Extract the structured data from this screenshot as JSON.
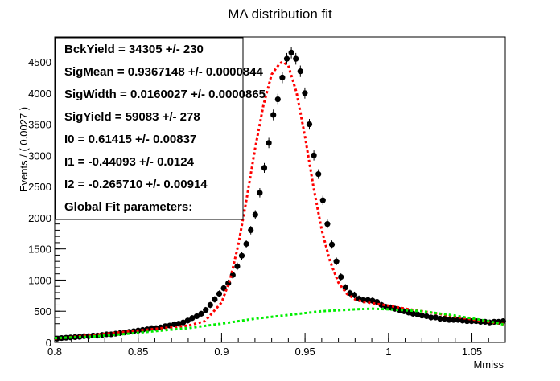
{
  "chart_data": {
    "type": "scatter",
    "title": "MΛ distribution fit",
    "xlabel": "Mmiss",
    "ylabel": "Events / ( 0.0027 )",
    "xlim": [
      0.8,
      1.07
    ],
    "ylim": [
      0,
      4900
    ],
    "x_ticks": [
      "0.8",
      "0.85",
      "0.9",
      "0.95",
      "1",
      "1.05"
    ],
    "y_ticks": [
      "0",
      "500",
      "1000",
      "1500",
      "2000",
      "2500",
      "3000",
      "3500",
      "4000",
      "4500"
    ],
    "grid": false,
    "legend_position": "top-left",
    "params_box": [
      "BckYield =  34305 +/- 230",
      "SigMean =  0.9367148 +/- 0.0000844",
      "SigWidth =  0.0160027 +/- 0.0000865",
      "SigYield =  59083 +/- 278",
      "I0 =  0.61415 +/- 0.00837",
      "I1 = -0.44093 +/- 0.0124",
      "I2 = -0.265710 +/- 0.00914",
      "Global Fit parameters:"
    ],
    "series": [
      {
        "kind": "data",
        "color": "#000000",
        "x": [
          0.8014,
          0.8041,
          0.8068,
          0.8095,
          0.8122,
          0.8149,
          0.8176,
          0.8203,
          0.823,
          0.8257,
          0.8284,
          0.8311,
          0.8338,
          0.8365,
          0.8392,
          0.8419,
          0.8446,
          0.8473,
          0.85,
          0.8527,
          0.8554,
          0.8581,
          0.8608,
          0.8635,
          0.8662,
          0.8689,
          0.8716,
          0.8743,
          0.877,
          0.8797,
          0.8824,
          0.8851,
          0.8878,
          0.8905,
          0.8932,
          0.8959,
          0.8986,
          0.9013,
          0.904,
          0.9067,
          0.9094,
          0.9121,
          0.9148,
          0.9175,
          0.9202,
          0.9229,
          0.9256,
          0.9283,
          0.931,
          0.9337,
          0.9364,
          0.9391,
          0.9418,
          0.9445,
          0.9472,
          0.9499,
          0.9526,
          0.9553,
          0.958,
          0.9607,
          0.9634,
          0.9661,
          0.9688,
          0.9715,
          0.9742,
          0.9769,
          0.9796,
          0.9823,
          0.985,
          0.9877,
          0.9904,
          0.9931,
          0.9958,
          0.9985,
          1.0012,
          1.0039,
          1.0066,
          1.0093,
          1.012,
          1.0147,
          1.0174,
          1.0201,
          1.0228,
          1.0255,
          1.0282,
          1.0309,
          1.0336,
          1.0363,
          1.039,
          1.0417,
          1.0444,
          1.0471,
          1.0498,
          1.0525,
          1.0552,
          1.0579,
          1.0606,
          1.0633,
          1.066,
          1.0687
        ],
        "y": [
          60,
          70,
          75,
          80,
          85,
          90,
          100,
          100,
          110,
          110,
          120,
          130,
          130,
          140,
          150,
          160,
          170,
          180,
          190,
          200,
          210,
          230,
          230,
          240,
          260,
          270,
          290,
          300,
          320,
          350,
          390,
          420,
          460,
          520,
          600,
          690,
          780,
          870,
          950,
          1080,
          1220,
          1390,
          1580,
          1800,
          2050,
          2400,
          2800,
          3200,
          3650,
          3900,
          4250,
          4550,
          4650,
          4550,
          4350,
          4000,
          3500,
          3000,
          2700,
          2280,
          1900,
          1570,
          1300,
          1050,
          880,
          790,
          760,
          700,
          680,
          680,
          670,
          650,
          600,
          570,
          560,
          540,
          520,
          500,
          480,
          460,
          450,
          430,
          420,
          400,
          400,
          380,
          380,
          360,
          360,
          360,
          350,
          340,
          340,
          340,
          330,
          330,
          320,
          330,
          330,
          340
        ]
      },
      {
        "kind": "total fit",
        "color": "#ff0000",
        "x": [
          0.8,
          0.85,
          0.88,
          0.89,
          0.9,
          0.905,
          0.91,
          0.915,
          0.92,
          0.925,
          0.93,
          0.935,
          0.9367,
          0.94,
          0.945,
          0.95,
          0.955,
          0.96,
          0.965,
          0.97,
          0.975,
          0.98,
          0.985,
          0.99,
          1.0,
          1.01,
          1.02,
          1.03,
          1.04,
          1.05,
          1.06,
          1.07
        ],
        "y": [
          60,
          190,
          270,
          340,
          640,
          1000,
          1560,
          2300,
          3100,
          3800,
          4300,
          4480,
          4500,
          4440,
          4000,
          3300,
          2500,
          1800,
          1300,
          960,
          780,
          690,
          650,
          630,
          590,
          540,
          500,
          460,
          410,
          370,
          330,
          290
        ]
      },
      {
        "kind": "background fit",
        "color": "#00ee00",
        "x": [
          0.8,
          0.82,
          0.84,
          0.86,
          0.88,
          0.9,
          0.92,
          0.94,
          0.96,
          0.98,
          0.99,
          1.0,
          1.02,
          1.04,
          1.06,
          1.07
        ],
        "y": [
          70,
          90,
          130,
          180,
          230,
          300,
          380,
          440,
          500,
          530,
          540,
          530,
          500,
          430,
          340,
          280
        ]
      }
    ]
  }
}
